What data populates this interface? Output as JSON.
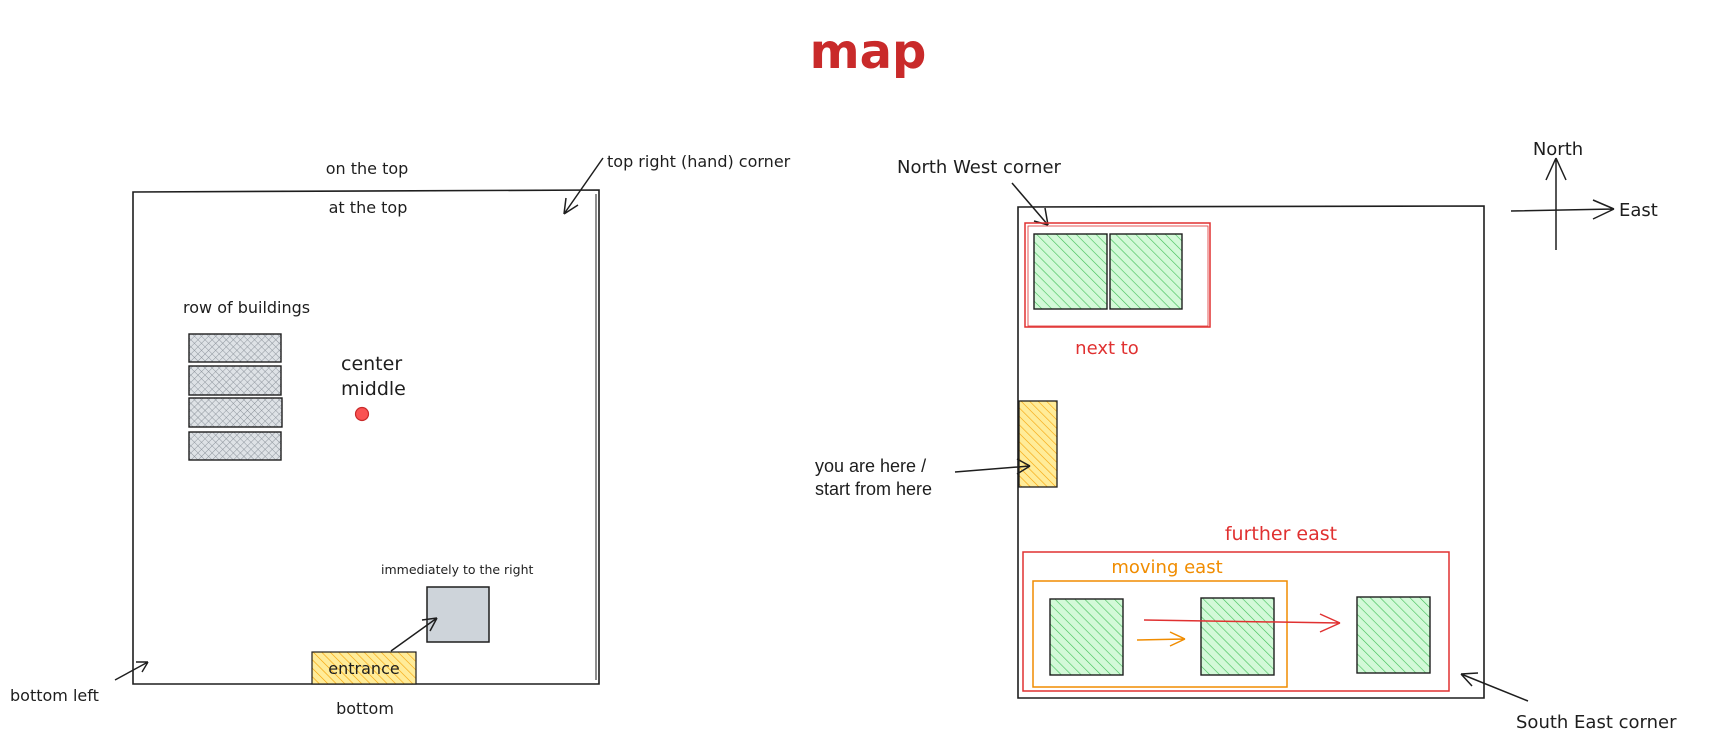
{
  "title": "map",
  "left_map": {
    "on_the_top": "on the top",
    "at_the_top": "at the top",
    "top_right_corner": "top right (hand) corner",
    "row_of_buildings": "row of buildings",
    "center": "center",
    "middle": "middle",
    "immediately_right": "immediately to the right",
    "entrance": "entrance",
    "bottom": "bottom",
    "bottom_left": "bottom left"
  },
  "right_map": {
    "north_west_corner": "North West corner",
    "next_to": "next to",
    "you_are_here": "you are here /",
    "start_from_here": "start from here",
    "further_east": "further east",
    "moving_east": "moving east",
    "south_east_corner": "South East corner",
    "compass_north": "North",
    "compass_east": "East"
  },
  "colors": {
    "ink": "#1e1e1e",
    "title_red": "#c92a2a",
    "red": "#e03131",
    "orange": "#f08c00",
    "green_fill": "#b2f2bb",
    "green_hatch": "#40c057",
    "yellow_fill": "#ffec99",
    "yellow_hatch": "#f59f00",
    "gray_fill": "#ced4da",
    "hatch_gray": "#868e96"
  }
}
